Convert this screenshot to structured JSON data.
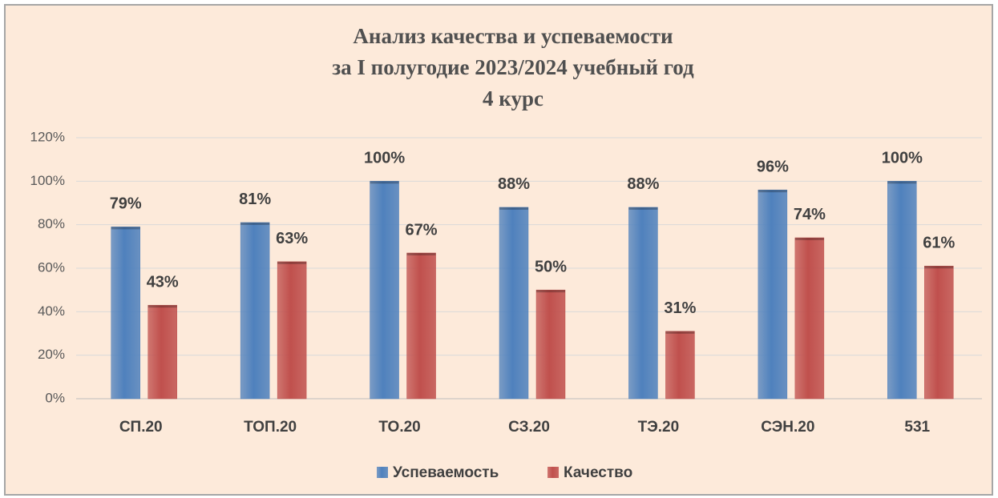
{
  "chart_data": {
    "type": "bar",
    "title": [
      "Анализ качества и успеваемости",
      "за I полугодие 2023/2024 учебный год",
      "4 курс"
    ],
    "categories": [
      "СП.20",
      "ТОП.20",
      "ТО.20",
      "СЗ.20",
      "ТЭ.20",
      "СЭН.20",
      "531"
    ],
    "series": [
      {
        "name": "Успеваемость",
        "color": "#4f81bd",
        "values": [
          79,
          81,
          100,
          88,
          88,
          96,
          100
        ],
        "value_labels": [
          "79%",
          "81%",
          "100%",
          "88%",
          "88%",
          "96%",
          "100%"
        ]
      },
      {
        "name": "Качество",
        "color": "#c0504d",
        "values": [
          43,
          63,
          67,
          50,
          31,
          74,
          61
        ],
        "value_labels": [
          "43%",
          "63%",
          "67%",
          "50%",
          "31%",
          "74%",
          "61%"
        ]
      }
    ],
    "ylim": [
      0,
      120
    ],
    "yticks": [
      {
        "value": 0,
        "label": "0%"
      },
      {
        "value": 20,
        "label": "20%"
      },
      {
        "value": 40,
        "label": "40%"
      },
      {
        "value": 60,
        "label": "60%"
      },
      {
        "value": 80,
        "label": "80%"
      },
      {
        "value": 100,
        "label": "100%"
      },
      {
        "value": 120,
        "label": "120%"
      }
    ],
    "grid": true,
    "legend": "bottom"
  }
}
